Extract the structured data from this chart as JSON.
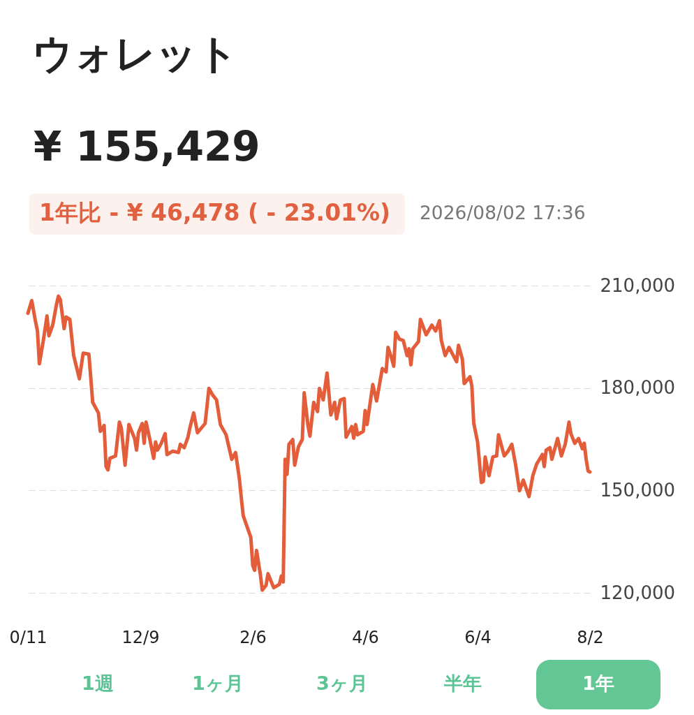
{
  "chart_data": {
    "type": "line",
    "title": "ウォレット",
    "subtitle": "¥ 155,429",
    "annotations": [
      "1年比 - ¥ 46,478 ( - 23.01%)",
      "2026/08/02 17:36",
      "1週",
      "1ヶ月",
      "3ヶ月",
      "半年",
      "1年"
    ],
    "x": [
      "2025-10-11",
      "2025-10-13",
      "2025-10-15",
      "2025-10-16",
      "2025-10-17",
      "2025-10-19",
      "2025-10-21",
      "2025-10-22",
      "2025-10-24",
      "2025-10-26",
      "2025-10-27",
      "2025-10-28",
      "2025-10-30",
      "2025-10-31",
      "2025-11-02",
      "2025-11-04",
      "2025-11-07",
      "2025-11-09",
      "2025-11-12",
      "2025-11-14",
      "2025-11-17",
      "2025-11-18",
      "2025-11-20",
      "2025-11-21",
      "2025-11-22",
      "2025-11-23",
      "2025-11-26",
      "2025-11-28",
      "2025-11-29",
      "2025-12-01",
      "2025-12-03",
      "2025-12-06",
      "2025-12-07",
      "2025-12-08",
      "2025-12-10",
      "2025-12-11",
      "2025-12-12",
      "2025-12-14",
      "2025-12-16",
      "2025-12-17",
      "2025-12-18",
      "2025-12-20",
      "2025-12-22",
      "2025-12-23",
      "2025-12-26",
      "2025-12-29",
      "2025-12-30",
      "2026-01-01",
      "2026-01-03",
      "2026-01-04",
      "2026-01-06",
      "2026-01-08",
      "2026-01-12",
      "2026-01-14",
      "2026-01-16",
      "2026-01-18",
      "2026-01-20",
      "2026-01-23",
      "2026-01-26",
      "2026-01-28",
      "2026-01-30",
      "2026-01-31",
      "2026-02-01",
      "2026-02-05",
      "2026-02-06",
      "2026-02-07",
      "2026-02-08",
      "2026-02-10",
      "2026-02-11",
      "2026-02-13",
      "2026-02-14",
      "2026-02-17",
      "2026-02-20",
      "2026-02-21",
      "2026-02-22",
      "2026-02-23",
      "2026-02-24",
      "2026-02-25",
      "2026-02-27",
      "2026-02-28",
      "2026-03-02",
      "2026-03-04",
      "2026-03-05",
      "2026-03-07",
      "2026-03-08",
      "2026-03-10",
      "2026-03-12",
      "2026-03-13",
      "2026-03-15",
      "2026-03-17",
      "2026-03-19",
      "2026-03-21",
      "2026-03-22",
      "2026-03-24",
      "2026-03-26",
      "2026-03-27",
      "2026-03-30",
      "2026-03-31",
      "2026-04-01",
      "2026-04-02",
      "2026-04-05",
      "2026-04-06",
      "2026-04-07",
      "2026-04-10",
      "2026-04-12",
      "2026-04-15",
      "2026-04-17",
      "2026-04-18",
      "2026-04-20",
      "2026-04-21",
      "2026-04-22",
      "2026-04-24",
      "2026-04-26",
      "2026-04-28",
      "2026-04-29",
      "2026-04-30",
      "2026-05-01",
      "2026-05-04",
      "2026-05-05",
      "2026-05-08",
      "2026-05-11",
      "2026-05-13",
      "2026-05-15",
      "2026-05-16",
      "2026-05-18",
      "2026-05-20",
      "2026-05-24",
      "2026-05-25",
      "2026-05-27",
      "2026-05-28",
      "2026-05-31",
      "2026-06-01",
      "2026-06-02",
      "2026-06-04",
      "2026-06-06",
      "2026-06-07",
      "2026-06-08",
      "2026-06-10",
      "2026-06-12",
      "2026-06-14",
      "2026-06-15",
      "2026-06-18",
      "2026-06-20",
      "2026-06-22",
      "2026-06-24",
      "2026-06-26",
      "2026-06-28",
      "2026-07-01",
      "2026-07-03",
      "2026-07-05",
      "2026-07-08",
      "2026-07-09",
      "2026-07-10",
      "2026-07-12",
      "2026-07-13",
      "2026-07-16",
      "2026-07-18",
      "2026-07-20",
      "2026-07-22",
      "2026-07-23",
      "2026-07-25",
      "2026-07-27",
      "2026-07-29",
      "2026-07-30",
      "2026-07-31",
      "2026-08-01",
      "2026-08-02"
    ],
    "series": [
      {
        "color": "#e35d3b",
        "values": [
          201900,
          205600,
          199400,
          196700,
          187100,
          193600,
          201100,
          195300,
          198400,
          204500,
          206900,
          205900,
          197400,
          200800,
          200100,
          189500,
          182700,
          190200,
          189900,
          175800,
          172700,
          167300,
          169000,
          157000,
          156000,
          159400,
          160100,
          170000,
          168300,
          157400,
          169300,
          165200,
          161800,
          166900,
          169600,
          163800,
          170000,
          164900,
          159400,
          164200,
          161800,
          163800,
          166600,
          160500,
          161500,
          161100,
          163500,
          162500,
          165600,
          168300,
          172700,
          166900,
          169600,
          179900,
          177900,
          176500,
          169300,
          166300,
          159100,
          161100,
          153300,
          147800,
          142600,
          136200,
          128000,
          126600,
          132400,
          125300,
          120800,
          122200,
          125600,
          121500,
          122500,
          124900,
          123200,
          159100,
          154700,
          163500,
          164900,
          157400,
          162800,
          164900,
          178600,
          169000,
          165900,
          175800,
          173100,
          179900,
          176500,
          184400,
          172100,
          175800,
          171000,
          176500,
          176900,
          165600,
          168700,
          165300,
          169300,
          166300,
          167300,
          173400,
          169300,
          181000,
          176200,
          185700,
          184700,
          191900,
          188500,
          186400,
          196300,
          194300,
          193900,
          189500,
          191500,
          186800,
          191500,
          193600,
          200100,
          195600,
          198400,
          196700,
          199700,
          193900,
          189500,
          191900,
          187700,
          192500,
          188500,
          181300,
          183300,
          180600,
          169700,
          164200,
          152300,
          152600,
          159800,
          154300,
          159800,
          160100,
          166300,
          160100,
          161500,
          163500,
          157400,
          149900,
          153000,
          148200,
          154300,
          157700,
          160500,
          157000,
          161800,
          162500,
          159100,
          165200,
          160100,
          163500,
          170000,
          166600,
          163800,
          165200,
          162200,
          163800,
          159100,
          155700,
          155400
        ]
      }
    ],
    "xlim": [
      "2025-10-11",
      "2026-08-02"
    ],
    "xticks": [
      {
        "value": "2025-10-11",
        "label": "0/11"
      },
      {
        "value": "2025-12-09",
        "label": "12/9"
      },
      {
        "value": "2026-02-06",
        "label": "2/6"
      },
      {
        "value": "2026-04-06",
        "label": "4/6"
      },
      {
        "value": "2026-06-04",
        "label": "6/4"
      },
      {
        "value": "2026-08-02",
        "label": "8/2"
      }
    ],
    "ylim": [
      120000,
      210000
    ],
    "yticks": [
      {
        "value": 120000,
        "label": "120,000"
      },
      {
        "value": 150000,
        "label": "150,000"
      },
      {
        "value": 180000,
        "label": "180,000"
      },
      {
        "value": 210000,
        "label": "210,000"
      }
    ],
    "grid": "y",
    "marker": "none",
    "line_style": "solid"
  }
}
